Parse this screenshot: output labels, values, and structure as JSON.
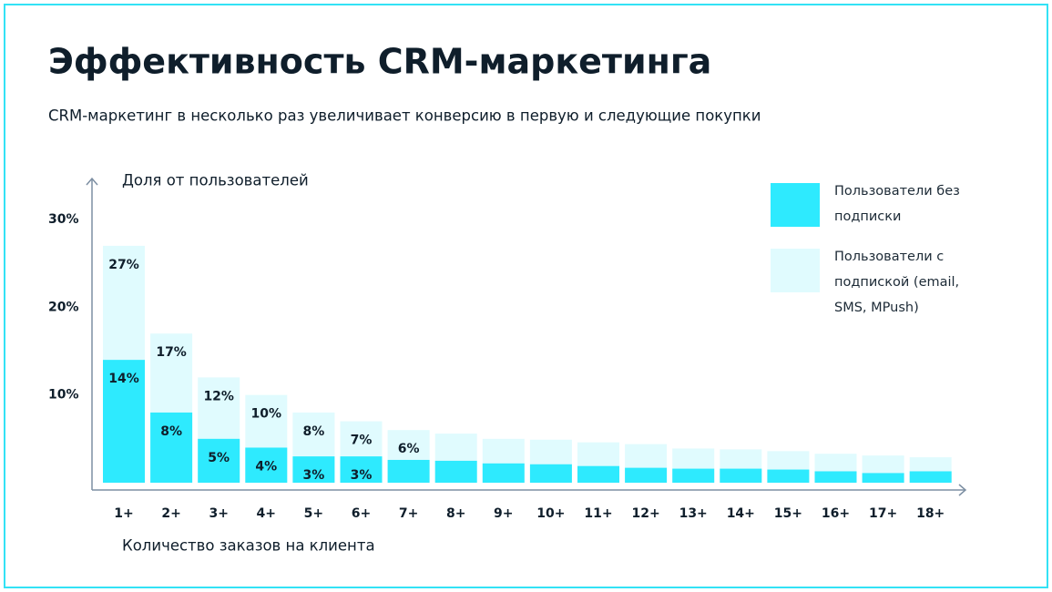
{
  "chart_data": {
    "type": "bar",
    "barmode": "overlay",
    "title": "Эффективность CRM-маркетинга",
    "subtitle": "CRM-маркетинг в несколько раз увеличивает конверсию в первую и следующие покупки",
    "y_label": "Доля от пользователей",
    "x_label": "Количество заказов на клиента",
    "categories": [
      "1+",
      "2+",
      "3+",
      "4+",
      "5+",
      "6+",
      "7+",
      "8+",
      "9+",
      "10+",
      "11+",
      "12+",
      "13+",
      "14+",
      "15+",
      "16+",
      "17+",
      "18+"
    ],
    "series": [
      {
        "name": "Пользователи с подпиской (email, SMS, MPush)",
        "color": "#e0fbfe",
        "values": [
          27,
          17,
          12,
          10,
          8,
          7,
          6,
          5.6,
          5,
          4.9,
          4.6,
          4.4,
          3.9,
          3.8,
          3.6,
          3.3,
          3.1,
          2.9
        ],
        "value_labels": [
          "27%",
          "17%",
          "12%",
          "10%",
          "8%",
          "7%",
          "6%",
          null,
          null,
          null,
          null,
          null,
          null,
          null,
          null,
          null,
          null,
          null
        ]
      },
      {
        "name": "Пользователи без подписки",
        "color": "#2eeafe",
        "values": [
          14,
          8,
          5,
          4,
          3,
          3,
          2.6,
          2.5,
          2.2,
          2.1,
          1.9,
          1.7,
          1.6,
          1.6,
          1.5,
          1.3,
          1.1,
          1.3
        ],
        "value_labels": [
          "14%",
          "8%",
          "5%",
          "4%",
          "3%",
          "3%",
          null,
          null,
          null,
          null,
          null,
          null,
          null,
          null,
          null,
          null,
          null,
          null
        ]
      }
    ],
    "ylim": [
      0,
      30
    ],
    "yticks": [
      {
        "value": 10,
        "label": "10%"
      },
      {
        "value": 20,
        "label": "20%"
      },
      {
        "value": 30,
        "label": "30%"
      }
    ],
    "grid": false,
    "legend": "top-right"
  }
}
